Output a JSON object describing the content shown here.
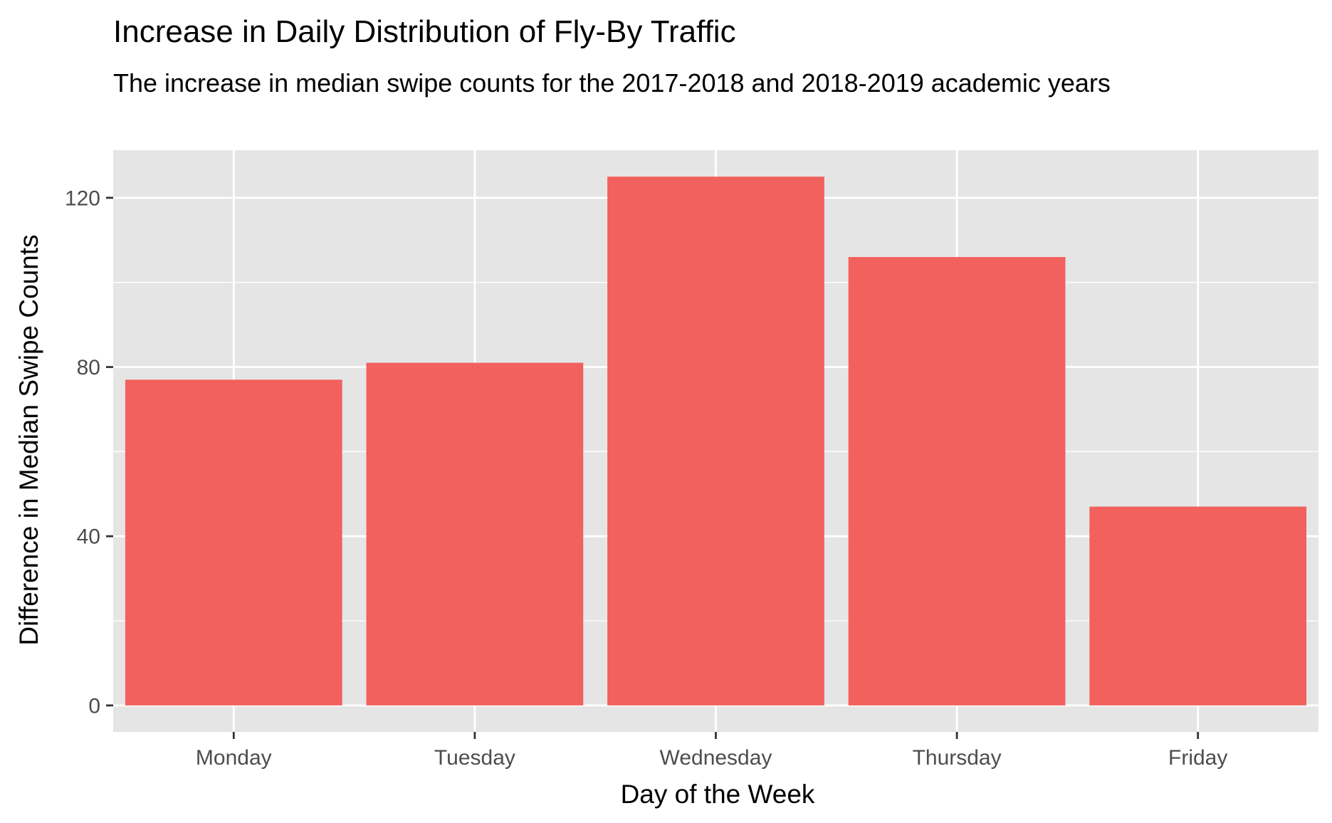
{
  "chart_data": {
    "type": "bar",
    "title": "Increase in Daily Distribution of Fly-By Traffic",
    "subtitle": "The increase in median swipe counts for the 2017-2018 and 2018-2019 academic years",
    "xlabel": "Day of the Week",
    "ylabel": "Difference in Median Swipe Counts",
    "categories": [
      "Monday",
      "Tuesday",
      "Wednesday",
      "Thursday",
      "Friday"
    ],
    "values": [
      77,
      81,
      125,
      106,
      47
    ],
    "ylim": [
      -6.25,
      131.25
    ],
    "yticks": [
      0,
      40,
      80,
      120
    ],
    "grid": true,
    "legend": "none",
    "colors": {
      "bar": "#F2615D",
      "panel": "#E5E5E5",
      "grid": "#FFFFFF",
      "tick_text": "#4D4D4D",
      "tick_mark": "#333333"
    }
  }
}
